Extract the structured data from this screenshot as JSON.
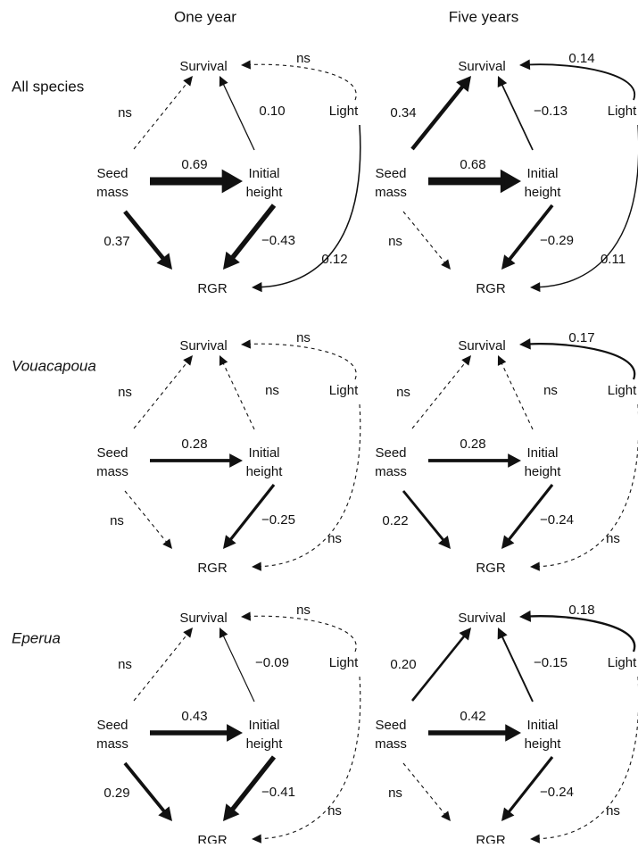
{
  "columns": [
    "One year",
    "Five years"
  ],
  "nodes": {
    "survival": "Survival",
    "seed": [
      "Seed",
      "mass"
    ],
    "height": [
      "Initial",
      "height"
    ],
    "rgr": "RGR",
    "light": "Light"
  },
  "rows": [
    {
      "label": "All species",
      "italic": false,
      "panels": [
        {
          "edges": {
            "seed_survival": {
              "label": "ns",
              "coef": null
            },
            "height_survival": {
              "label": "0.10",
              "coef": 0.1
            },
            "light_survival": {
              "label": "ns",
              "coef": null
            },
            "seed_height": {
              "label": "0.69",
              "coef": 0.69
            },
            "seed_rgr": {
              "label": "0.37",
              "coef": 0.37
            },
            "height_rgr": {
              "label": "−0.43",
              "coef": -0.43
            },
            "light_rgr": {
              "label": "0.12",
              "coef": 0.12
            }
          }
        },
        {
          "edges": {
            "seed_survival": {
              "label": "0.34",
              "coef": 0.34
            },
            "height_survival": {
              "label": "−0.13",
              "coef": -0.13
            },
            "light_survival": {
              "label": "0.14",
              "coef": 0.14
            },
            "seed_height": {
              "label": "0.68",
              "coef": 0.68
            },
            "seed_rgr": {
              "label": "ns",
              "coef": null
            },
            "height_rgr": {
              "label": "−0.29",
              "coef": -0.29
            },
            "light_rgr": {
              "label": "0.11",
              "coef": 0.11
            }
          }
        }
      ]
    },
    {
      "label": "Vouacapoua",
      "italic": true,
      "panels": [
        {
          "edges": {
            "seed_survival": {
              "label": "ns",
              "coef": null
            },
            "height_survival": {
              "label": "ns",
              "coef": null
            },
            "light_survival": {
              "label": "ns",
              "coef": null
            },
            "seed_height": {
              "label": "0.28",
              "coef": 0.28
            },
            "seed_rgr": {
              "label": "ns",
              "coef": null
            },
            "height_rgr": {
              "label": "−0.25",
              "coef": -0.25
            },
            "light_rgr": {
              "label": "ns",
              "coef": null
            }
          }
        },
        {
          "edges": {
            "seed_survival": {
              "label": "ns",
              "coef": null
            },
            "height_survival": {
              "label": "ns",
              "coef": null
            },
            "light_survival": {
              "label": "0.17",
              "coef": 0.17
            },
            "seed_height": {
              "label": "0.28",
              "coef": 0.28
            },
            "seed_rgr": {
              "label": "0.22",
              "coef": 0.22
            },
            "height_rgr": {
              "label": "−0.24",
              "coef": -0.24
            },
            "light_rgr": {
              "label": "ns",
              "coef": null
            }
          }
        }
      ]
    },
    {
      "label": "Eperua",
      "italic": true,
      "panels": [
        {
          "edges": {
            "seed_survival": {
              "label": "ns",
              "coef": null
            },
            "height_survival": {
              "label": "−0.09",
              "coef": -0.09
            },
            "light_survival": {
              "label": "ns",
              "coef": null
            },
            "seed_height": {
              "label": "0.43",
              "coef": 0.43
            },
            "seed_rgr": {
              "label": "0.29",
              "coef": 0.29
            },
            "height_rgr": {
              "label": "−0.41",
              "coef": -0.41
            },
            "light_rgr": {
              "label": "ns",
              "coef": null
            }
          }
        },
        {
          "edges": {
            "seed_survival": {
              "label": "0.20",
              "coef": 0.2
            },
            "height_survival": {
              "label": "−0.15",
              "coef": -0.15
            },
            "light_survival": {
              "label": "0.18",
              "coef": 0.18
            },
            "seed_height": {
              "label": "0.42",
              "coef": 0.42
            },
            "seed_rgr": {
              "label": "ns",
              "coef": null
            },
            "height_rgr": {
              "label": "−0.24",
              "coef": -0.24
            },
            "light_rgr": {
              "label": "ns",
              "coef": null
            }
          }
        }
      ]
    }
  ]
}
